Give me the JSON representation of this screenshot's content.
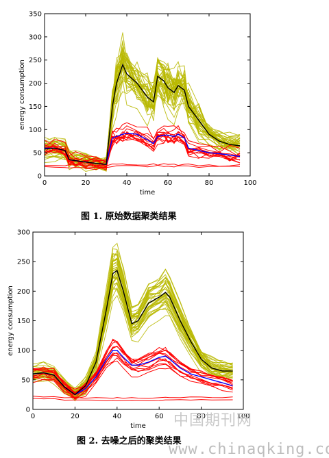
{
  "colors": {
    "cluster_a": "#b9b900",
    "cluster_b": "#ff0000",
    "mean_a": "#000000",
    "mean_b": "#0000ff"
  },
  "chart_data": [
    {
      "type": "line",
      "xlabel": "time",
      "ylabel": "energy consumption",
      "xlim": [
        0,
        100
      ],
      "ylim": [
        0,
        350
      ],
      "xticks": [
        "0",
        "20",
        "40",
        "60",
        "80",
        "100"
      ],
      "yticks": [
        "0",
        "50",
        "100",
        "150",
        "200",
        "250",
        "300",
        "350"
      ],
      "caption": "图 1.  原始数据聚类结果",
      "x": [
        0,
        5,
        10,
        12,
        15,
        20,
        25,
        30,
        33,
        35,
        38,
        40,
        45,
        50,
        53,
        55,
        58,
        60,
        63,
        65,
        68,
        70,
        75,
        80,
        85,
        90,
        95
      ],
      "series": [
        {
          "role": "mean_a",
          "values": [
            58,
            60,
            55,
            35,
            33,
            30,
            27,
            25,
            150,
            200,
            240,
            220,
            200,
            170,
            160,
            215,
            205,
            190,
            180,
            195,
            185,
            150,
            120,
            90,
            75,
            68,
            65
          ]
        },
        {
          "role": "mean_b",
          "values": [
            60,
            60,
            55,
            35,
            33,
            30,
            27,
            25,
            82,
            85,
            90,
            92,
            90,
            78,
            70,
            85,
            88,
            88,
            85,
            90,
            82,
            60,
            55,
            50,
            48,
            45,
            42
          ]
        },
        {
          "role": "outlier_b",
          "values": [
            20,
            20,
            20,
            20,
            20,
            20,
            20,
            20,
            22,
            22,
            22,
            22,
            22,
            22,
            22,
            22,
            22,
            22,
            22,
            22,
            22,
            22,
            20,
            20,
            20,
            20,
            20
          ]
        }
      ]
    },
    {
      "type": "line",
      "xlabel": "time",
      "ylabel": "energy consumption",
      "xlim": [
        0,
        100
      ],
      "ylim": [
        0,
        300
      ],
      "xticks": [
        "0",
        "20",
        "40",
        "60",
        "80",
        "100"
      ],
      "yticks": [
        "0",
        "50",
        "100",
        "150",
        "200",
        "250",
        "300"
      ],
      "caption": "图 2.  去噪之后的聚类结果",
      "x": [
        0,
        5,
        10,
        15,
        20,
        25,
        30,
        35,
        38,
        40,
        43,
        47,
        50,
        55,
        60,
        63,
        65,
        70,
        75,
        80,
        85,
        90,
        95
      ],
      "series": [
        {
          "role": "mean_a",
          "values": [
            60,
            62,
            58,
            38,
            25,
            40,
            80,
            170,
            230,
            235,
            200,
            145,
            150,
            180,
            190,
            198,
            190,
            150,
            115,
            85,
            70,
            65,
            65
          ]
        },
        {
          "role": "mean_b",
          "values": [
            60,
            62,
            58,
            38,
            25,
            35,
            55,
            85,
            100,
            100,
            88,
            75,
            75,
            80,
            88,
            90,
            85,
            70,
            60,
            55,
            50,
            45,
            40
          ]
        },
        {
          "role": "outlier_b",
          "values": [
            22,
            21,
            21,
            20,
            20,
            19,
            19,
            19,
            19,
            19,
            19,
            19,
            19,
            19,
            19,
            20,
            20,
            20,
            20,
            20,
            20,
            20,
            20
          ]
        }
      ]
    }
  ],
  "watermark": {
    "line1": "中国期刊网",
    "line2": "www.chinaqking.com"
  }
}
